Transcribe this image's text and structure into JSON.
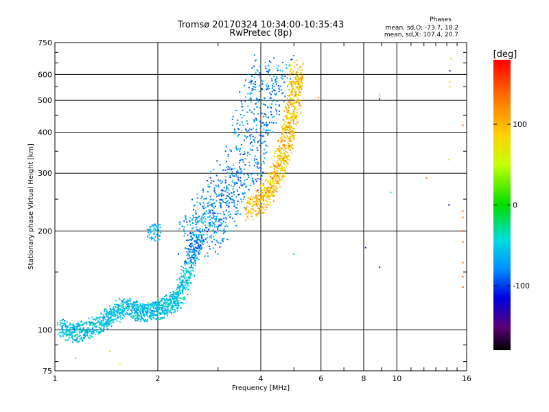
{
  "chart_data": {
    "type": "scatter",
    "title": "Tromsø 20170324 10:34:00-10:35:43",
    "subtitle": "RwPretec (8p)",
    "xlabel": "Frequency [MHz]",
    "ylabel": "Stationary phase Virtual Height [km]",
    "x_scale": "log",
    "y_scale": "log",
    "xlim": [
      1,
      16
    ],
    "ylim": [
      75,
      750
    ],
    "x_ticks": [
      1,
      2,
      4,
      6,
      8,
      10,
      16
    ],
    "x_tick_labels": [
      "1",
      "2",
      "4",
      "6",
      "8",
      "10",
      "16"
    ],
    "y_ticks": [
      75,
      100,
      200,
      300,
      400,
      500,
      600,
      750
    ],
    "y_tick_labels": [
      "75",
      "100",
      "200",
      "300",
      "400",
      "500",
      "600",
      "750"
    ],
    "grid": true,
    "phase_stats": {
      "heading": "Phases",
      "line_o": "mean, sd,O: -73.7, 18.2",
      "line_x": "mean, sd,X: 107.4, 20.7"
    },
    "colorbar": {
      "label": "[deg]",
      "range": [
        -180,
        180
      ],
      "ticks": [
        100,
        0,
        -100
      ],
      "tick_labels": [
        "100",
        "0",
        "-100"
      ]
    },
    "o_trace": [
      {
        "f": 1.05,
        "h": 103
      },
      {
        "f": 1.12,
        "h": 97
      },
      {
        "f": 1.2,
        "h": 99
      },
      {
        "f": 1.3,
        "h": 102
      },
      {
        "f": 1.4,
        "h": 108
      },
      {
        "f": 1.5,
        "h": 112
      },
      {
        "f": 1.6,
        "h": 118
      },
      {
        "f": 1.7,
        "h": 115
      },
      {
        "f": 1.8,
        "h": 112
      },
      {
        "f": 1.9,
        "h": 115
      },
      {
        "f": 2.0,
        "h": 114
      },
      {
        "f": 2.1,
        "h": 118
      },
      {
        "f": 2.2,
        "h": 121
      },
      {
        "f": 2.3,
        "h": 126
      },
      {
        "f": 2.4,
        "h": 140
      },
      {
        "f": 2.5,
        "h": 165
      },
      {
        "f": 2.6,
        "h": 185
      },
      {
        "f": 2.7,
        "h": 195
      },
      {
        "f": 2.8,
        "h": 210
      },
      {
        "f": 2.9,
        "h": 225
      },
      {
        "f": 3.0,
        "h": 235
      },
      {
        "f": 3.2,
        "h": 255
      },
      {
        "f": 3.4,
        "h": 290
      },
      {
        "f": 3.6,
        "h": 330
      },
      {
        "f": 3.8,
        "h": 400
      },
      {
        "f": 4.0,
        "h": 480
      },
      {
        "f": 4.2,
        "h": 560
      },
      {
        "f": 4.4,
        "h": 620
      }
    ],
    "o_cluster": {
      "f": 1.95,
      "h": 198
    },
    "x_trace": [
      {
        "f": 3.7,
        "h": 230
      },
      {
        "f": 3.9,
        "h": 240
      },
      {
        "f": 4.1,
        "h": 255
      },
      {
        "f": 4.3,
        "h": 275
      },
      {
        "f": 4.5,
        "h": 300
      },
      {
        "f": 4.6,
        "h": 330
      },
      {
        "f": 4.7,
        "h": 360
      },
      {
        "f": 4.8,
        "h": 400
      },
      {
        "f": 4.9,
        "h": 440
      },
      {
        "f": 5.0,
        "h": 480
      },
      {
        "f": 5.05,
        "h": 530
      },
      {
        "f": 5.1,
        "h": 580
      },
      {
        "f": 5.1,
        "h": 620
      }
    ],
    "isolated_points": [
      {
        "f": 1.15,
        "h": 82,
        "phase": 130
      },
      {
        "f": 1.45,
        "h": 86,
        "phase": 110
      },
      {
        "f": 1.55,
        "h": 79,
        "phase": 90
      },
      {
        "f": 5.0,
        "h": 170,
        "phase": -20
      },
      {
        "f": 5.9,
        "h": 510,
        "phase": 130
      },
      {
        "f": 8.1,
        "h": 178,
        "phase": -130
      },
      {
        "f": 8.9,
        "h": 155,
        "phase": -130
      },
      {
        "f": 8.9,
        "h": 505,
        "phase": -100
      },
      {
        "f": 8.9,
        "h": 520,
        "phase": 120
      },
      {
        "f": 9.6,
        "h": 262,
        "phase": -40
      },
      {
        "f": 12.2,
        "h": 290,
        "phase": 140
      },
      {
        "f": 14.2,
        "h": 330,
        "phase": 100
      },
      {
        "f": 14.2,
        "h": 240,
        "phase": -120
      },
      {
        "f": 14.3,
        "h": 615,
        "phase": -110
      },
      {
        "f": 14.3,
        "h": 570,
        "phase": 100
      },
      {
        "f": 14.4,
        "h": 670,
        "phase": 100
      },
      {
        "f": 14.3,
        "h": 550,
        "phase": 95
      },
      {
        "f": 15.6,
        "h": 230,
        "phase": 150
      },
      {
        "f": 15.6,
        "h": 220,
        "phase": 140
      },
      {
        "f": 15.6,
        "h": 200,
        "phase": 160
      },
      {
        "f": 15.6,
        "h": 185,
        "phase": 150
      },
      {
        "f": 15.6,
        "h": 160,
        "phase": 140
      },
      {
        "f": 15.6,
        "h": 145,
        "phase": 150
      },
      {
        "f": 15.6,
        "h": 135,
        "phase": 160
      },
      {
        "f": 15.6,
        "h": 420,
        "phase": 150
      }
    ]
  }
}
